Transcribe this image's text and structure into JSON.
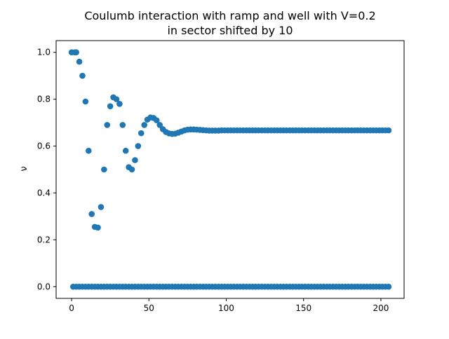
{
  "chart_data": {
    "type": "scatter",
    "title_line1": "Coulumb interaction with ramp and well with V=0.2",
    "title_line2": "in sector shifted by 10",
    "xlabel": "",
    "ylabel": "ν",
    "xlim": [
      -10,
      215
    ],
    "ylim": [
      -0.05,
      1.05
    ],
    "x_ticks": [
      0,
      50,
      100,
      150,
      200
    ],
    "y_ticks": [
      0.0,
      0.2,
      0.4,
      0.6,
      0.8,
      1.0
    ],
    "x_tick_labels": [
      "0",
      "50",
      "100",
      "150",
      "200"
    ],
    "y_tick_labels": [
      "0.0",
      "0.2",
      "0.4",
      "0.6",
      "0.8",
      "1.0"
    ],
    "marker_color": "#1f77b4",
    "grid": false,
    "series": [
      {
        "values_description_hidden": true,
        "points_upper": [
          [
            0,
            1.0
          ],
          [
            2,
            1.0
          ],
          [
            3,
            1.0
          ],
          [
            5,
            0.96
          ],
          [
            7,
            0.9
          ],
          [
            9,
            0.79
          ],
          [
            11,
            0.58
          ],
          [
            13,
            0.31
          ],
          [
            15,
            0.255
          ],
          [
            17,
            0.252
          ],
          [
            19,
            0.34
          ],
          [
            21,
            0.5
          ],
          [
            23,
            0.69
          ],
          [
            25,
            0.77
          ],
          [
            27,
            0.808
          ],
          [
            29,
            0.8
          ],
          [
            31,
            0.78
          ],
          [
            33,
            0.69
          ],
          [
            35,
            0.58
          ],
          [
            37,
            0.51
          ],
          [
            39,
            0.5
          ],
          [
            41,
            0.54
          ],
          [
            43,
            0.6
          ],
          [
            45,
            0.655
          ],
          [
            47,
            0.69
          ],
          [
            49,
            0.713
          ],
          [
            51,
            0.722
          ],
          [
            53,
            0.72
          ],
          [
            55,
            0.71
          ],
          [
            57,
            0.69
          ],
          [
            59,
            0.672
          ],
          [
            61,
            0.66
          ],
          [
            63,
            0.654
          ],
          [
            65,
            0.652
          ],
          [
            67,
            0.653
          ],
          [
            69,
            0.657
          ],
          [
            71,
            0.662
          ],
          [
            73,
            0.667
          ],
          [
            75,
            0.67
          ],
          [
            77,
            0.671
          ],
          [
            79,
            0.671
          ],
          [
            81,
            0.67
          ],
          [
            83,
            0.669
          ],
          [
            85,
            0.668
          ],
          [
            87,
            0.667
          ],
          [
            89,
            0.666
          ],
          [
            91,
            0.666
          ],
          [
            93,
            0.666
          ],
          [
            95,
            0.666
          ],
          [
            97,
            0.667
          ],
          [
            99,
            0.667
          ],
          [
            101,
            0.667
          ],
          [
            103,
            0.667
          ],
          [
            105,
            0.667
          ],
          [
            107,
            0.667
          ],
          [
            109,
            0.667
          ],
          [
            111,
            0.667
          ],
          [
            113,
            0.667
          ],
          [
            115,
            0.667
          ],
          [
            117,
            0.667
          ],
          [
            119,
            0.667
          ],
          [
            121,
            0.667
          ],
          [
            123,
            0.667
          ],
          [
            125,
            0.667
          ],
          [
            127,
            0.667
          ],
          [
            129,
            0.667
          ],
          [
            131,
            0.667
          ],
          [
            133,
            0.667
          ],
          [
            135,
            0.667
          ],
          [
            137,
            0.667
          ],
          [
            139,
            0.667
          ],
          [
            141,
            0.667
          ],
          [
            143,
            0.667
          ],
          [
            145,
            0.667
          ],
          [
            147,
            0.667
          ],
          [
            149,
            0.667
          ],
          [
            151,
            0.667
          ],
          [
            153,
            0.667
          ],
          [
            155,
            0.667
          ],
          [
            157,
            0.667
          ],
          [
            159,
            0.667
          ],
          [
            161,
            0.667
          ],
          [
            163,
            0.667
          ],
          [
            165,
            0.667
          ],
          [
            167,
            0.667
          ],
          [
            169,
            0.667
          ],
          [
            171,
            0.667
          ],
          [
            173,
            0.667
          ],
          [
            175,
            0.667
          ],
          [
            177,
            0.667
          ],
          [
            179,
            0.667
          ],
          [
            181,
            0.667
          ],
          [
            183,
            0.667
          ],
          [
            185,
            0.667
          ],
          [
            187,
            0.667
          ],
          [
            189,
            0.667
          ],
          [
            191,
            0.667
          ],
          [
            193,
            0.667
          ],
          [
            195,
            0.667
          ],
          [
            197,
            0.667
          ],
          [
            199,
            0.667
          ],
          [
            201,
            0.667
          ],
          [
            203,
            0.667
          ],
          [
            205,
            0.667
          ]
        ],
        "points_zero": [
          [
            1,
            0
          ],
          [
            3,
            0
          ],
          [
            5,
            0
          ],
          [
            7,
            0
          ],
          [
            9,
            0
          ],
          [
            11,
            0
          ],
          [
            13,
            0
          ],
          [
            15,
            0
          ],
          [
            17,
            0
          ],
          [
            19,
            0
          ],
          [
            21,
            0
          ],
          [
            23,
            0
          ],
          [
            25,
            0
          ],
          [
            27,
            0
          ],
          [
            29,
            0
          ],
          [
            31,
            0
          ],
          [
            33,
            0
          ],
          [
            35,
            0
          ],
          [
            37,
            0
          ],
          [
            39,
            0
          ],
          [
            41,
            0
          ],
          [
            43,
            0
          ],
          [
            45,
            0
          ],
          [
            47,
            0
          ],
          [
            49,
            0
          ],
          [
            51,
            0
          ],
          [
            53,
            0
          ],
          [
            55,
            0
          ],
          [
            57,
            0
          ],
          [
            59,
            0
          ],
          [
            61,
            0
          ],
          [
            63,
            0
          ],
          [
            65,
            0
          ],
          [
            67,
            0
          ],
          [
            69,
            0
          ],
          [
            71,
            0
          ],
          [
            73,
            0
          ],
          [
            75,
            0
          ],
          [
            77,
            0
          ],
          [
            79,
            0
          ],
          [
            81,
            0
          ],
          [
            83,
            0
          ],
          [
            85,
            0
          ],
          [
            87,
            0
          ],
          [
            89,
            0
          ],
          [
            91,
            0
          ],
          [
            93,
            0
          ],
          [
            95,
            0
          ],
          [
            97,
            0
          ],
          [
            99,
            0
          ],
          [
            101,
            0
          ],
          [
            103,
            0
          ],
          [
            105,
            0
          ],
          [
            107,
            0
          ],
          [
            109,
            0
          ],
          [
            111,
            0
          ],
          [
            113,
            0
          ],
          [
            115,
            0
          ],
          [
            117,
            0
          ],
          [
            119,
            0
          ],
          [
            121,
            0
          ],
          [
            123,
            0
          ],
          [
            125,
            0
          ],
          [
            127,
            0
          ],
          [
            129,
            0
          ],
          [
            131,
            0
          ],
          [
            133,
            0
          ],
          [
            135,
            0
          ],
          [
            137,
            0
          ],
          [
            139,
            0
          ],
          [
            141,
            0
          ],
          [
            143,
            0
          ],
          [
            145,
            0
          ],
          [
            147,
            0
          ],
          [
            149,
            0
          ],
          [
            151,
            0
          ],
          [
            153,
            0
          ],
          [
            155,
            0
          ],
          [
            157,
            0
          ],
          [
            159,
            0
          ],
          [
            161,
            0
          ],
          [
            163,
            0
          ],
          [
            165,
            0
          ],
          [
            167,
            0
          ],
          [
            169,
            0
          ],
          [
            171,
            0
          ],
          [
            173,
            0
          ],
          [
            175,
            0
          ],
          [
            177,
            0
          ],
          [
            179,
            0
          ],
          [
            181,
            0
          ],
          [
            183,
            0
          ],
          [
            185,
            0
          ],
          [
            187,
            0
          ],
          [
            189,
            0
          ],
          [
            191,
            0
          ],
          [
            193,
            0
          ],
          [
            195,
            0
          ],
          [
            197,
            0
          ],
          [
            199,
            0
          ],
          [
            201,
            0
          ],
          [
            203,
            0
          ],
          [
            205,
            0
          ]
        ]
      }
    ]
  }
}
